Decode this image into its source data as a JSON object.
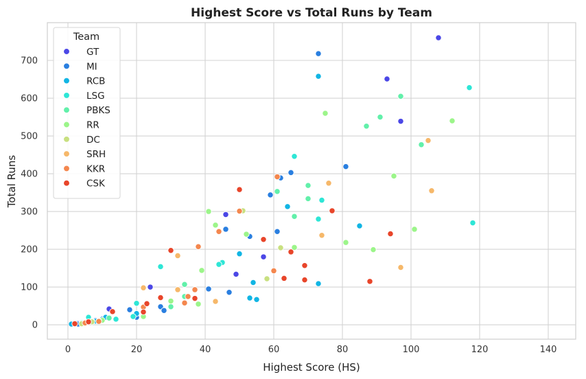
{
  "chart_data": {
    "type": "scatter",
    "title": "Highest Score vs Total Runs by Team",
    "xlabel": "Highest Score (HS)",
    "ylabel": "Total Runs",
    "xlim": [
      -6,
      148
    ],
    "ylim": [
      -38,
      800
    ],
    "xticks": [
      0,
      20,
      40,
      60,
      80,
      100,
      120,
      140
    ],
    "yticks": [
      0,
      100,
      200,
      300,
      400,
      500,
      600,
      700
    ],
    "grid": true,
    "legend": {
      "title": "Team",
      "position": "top-left"
    },
    "series": [
      {
        "name": "GT",
        "color": "#4b47e6",
        "points": [
          [
            108,
            760
          ],
          [
            93,
            651
          ],
          [
            97,
            539
          ],
          [
            46,
            292
          ],
          [
            57,
            180
          ],
          [
            49,
            134
          ],
          [
            24,
            100
          ],
          [
            12,
            42
          ],
          [
            20,
            22
          ],
          [
            8,
            12
          ],
          [
            5,
            6
          ],
          [
            3,
            4
          ],
          [
            1,
            2
          ]
        ]
      },
      {
        "name": "MI",
        "color": "#2a7fe0",
        "points": [
          [
            73,
            718
          ],
          [
            81,
            419
          ],
          [
            65,
            403
          ],
          [
            62,
            389
          ],
          [
            59,
            344
          ],
          [
            61,
            247
          ],
          [
            46,
            253
          ],
          [
            53,
            234
          ],
          [
            47,
            86
          ],
          [
            41,
            95
          ],
          [
            27,
            48
          ],
          [
            28,
            38
          ],
          [
            18,
            40
          ],
          [
            20,
            20
          ],
          [
            10,
            15
          ],
          [
            6,
            8
          ],
          [
            3,
            2
          ]
        ]
      },
      {
        "name": "RCB",
        "color": "#11b5e4",
        "points": [
          [
            73,
            658
          ],
          [
            64,
            313
          ],
          [
            85,
            262
          ],
          [
            50,
            188
          ],
          [
            73,
            109
          ],
          [
            54,
            112
          ],
          [
            53,
            71
          ],
          [
            55,
            67
          ],
          [
            20,
            30
          ],
          [
            11,
            20
          ],
          [
            8,
            10
          ],
          [
            1,
            2
          ]
        ]
      },
      {
        "name": "LSG",
        "color": "#2ee6d6",
        "points": [
          [
            117,
            628
          ],
          [
            118,
            270
          ],
          [
            66,
            446
          ],
          [
            74,
            330
          ],
          [
            73,
            280
          ],
          [
            45,
            165
          ],
          [
            44,
            160
          ],
          [
            27,
            154
          ],
          [
            20,
            57
          ],
          [
            19,
            22
          ],
          [
            14,
            15
          ],
          [
            6,
            20
          ],
          [
            4,
            5
          ]
        ]
      },
      {
        "name": "PBKS",
        "color": "#62f0aa",
        "points": [
          [
            97,
            605
          ],
          [
            91,
            550
          ],
          [
            87,
            526
          ],
          [
            103,
            477
          ],
          [
            70,
            369
          ],
          [
            61,
            353
          ],
          [
            70,
            334
          ],
          [
            66,
            287
          ],
          [
            34,
            107
          ],
          [
            30,
            48
          ],
          [
            34,
            75
          ],
          [
            12,
            18
          ],
          [
            7,
            10
          ]
        ]
      },
      {
        "name": "RR",
        "color": "#9cf58a",
        "points": [
          [
            75,
            560
          ],
          [
            112,
            540
          ],
          [
            95,
            394
          ],
          [
            81,
            218
          ],
          [
            89,
            199
          ],
          [
            101,
            253
          ],
          [
            66,
            205
          ],
          [
            52,
            240
          ],
          [
            43,
            264
          ],
          [
            39,
            144
          ],
          [
            41,
            300
          ],
          [
            30,
            63
          ],
          [
            38,
            55
          ],
          [
            22,
            22
          ],
          [
            10,
            12
          ],
          [
            5,
            5
          ]
        ]
      },
      {
        "name": "DC",
        "color": "#c8e080",
        "points": [
          [
            51,
            302
          ],
          [
            62,
            204
          ],
          [
            58,
            122
          ],
          [
            9,
            10
          ],
          [
            7,
            8
          ],
          [
            4,
            3
          ]
        ]
      },
      {
        "name": "SRH",
        "color": "#f6b86a",
        "points": [
          [
            105,
            488
          ],
          [
            106,
            355
          ],
          [
            76,
            375
          ],
          [
            74,
            237
          ],
          [
            32,
            183
          ],
          [
            22,
            98
          ],
          [
            43,
            62
          ],
          [
            32,
            93
          ],
          [
            97,
            152
          ]
        ]
      },
      {
        "name": "KKR",
        "color": "#f4874e",
        "points": [
          [
            61,
            392
          ],
          [
            50,
            301
          ],
          [
            44,
            247
          ],
          [
            38,
            207
          ],
          [
            60,
            143
          ],
          [
            35,
            75
          ],
          [
            37,
            93
          ],
          [
            34,
            58
          ],
          [
            22,
            47
          ],
          [
            9,
            9
          ],
          [
            5,
            5
          ]
        ]
      },
      {
        "name": "CSK",
        "color": "#e8452a",
        "points": [
          [
            50,
            358
          ],
          [
            77,
            302
          ],
          [
            57,
            226
          ],
          [
            94,
            241
          ],
          [
            65,
            193
          ],
          [
            30,
            197
          ],
          [
            69,
            157
          ],
          [
            69,
            119
          ],
          [
            63,
            123
          ],
          [
            88,
            115
          ],
          [
            37,
            70
          ],
          [
            27,
            72
          ],
          [
            23,
            56
          ],
          [
            22,
            34
          ],
          [
            13,
            35
          ],
          [
            6,
            8
          ],
          [
            2,
            3
          ]
        ]
      }
    ]
  }
}
